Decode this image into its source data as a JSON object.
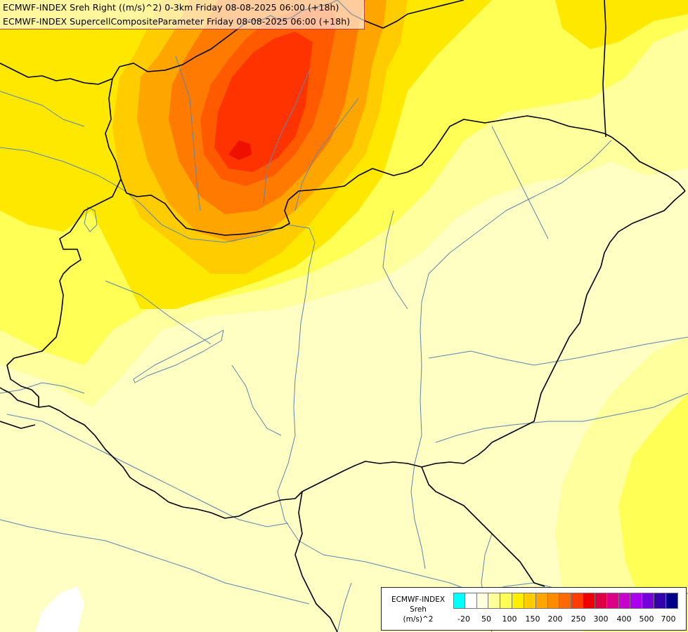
{
  "header": {
    "line1": "ECMWF-INDEX Sreh Right ((m/s)^2) 0-3km Friday 08-08-2025 06:00 (+18h)",
    "line2": "ECMWF-INDEX SupercellCompositeParameter Friday 08-08-2025 06:00 (+18h)"
  },
  "legend": {
    "model": "ECMWF-INDEX",
    "variable": "Sreh",
    "unit": "(m/s)^2",
    "colors": [
      "#00ffff",
      "#ffffff",
      "#ffffe0",
      "#ffff99",
      "#ffff55",
      "#ffee00",
      "#ffcc00",
      "#ffa500",
      "#ff8c00",
      "#ff6a00",
      "#ff3c00",
      "#ee0000",
      "#dd0044",
      "#dd0088",
      "#cc00cc",
      "#aa00ee",
      "#7700dd",
      "#3300aa",
      "#000088"
    ],
    "tick_labels": [
      "-20",
      "50",
      "100",
      "150",
      "200",
      "250",
      "300",
      "400",
      "500",
      "700"
    ]
  },
  "colors": {
    "background": "#ffffc4",
    "border": "#000000",
    "river": "#5a86b0"
  }
}
